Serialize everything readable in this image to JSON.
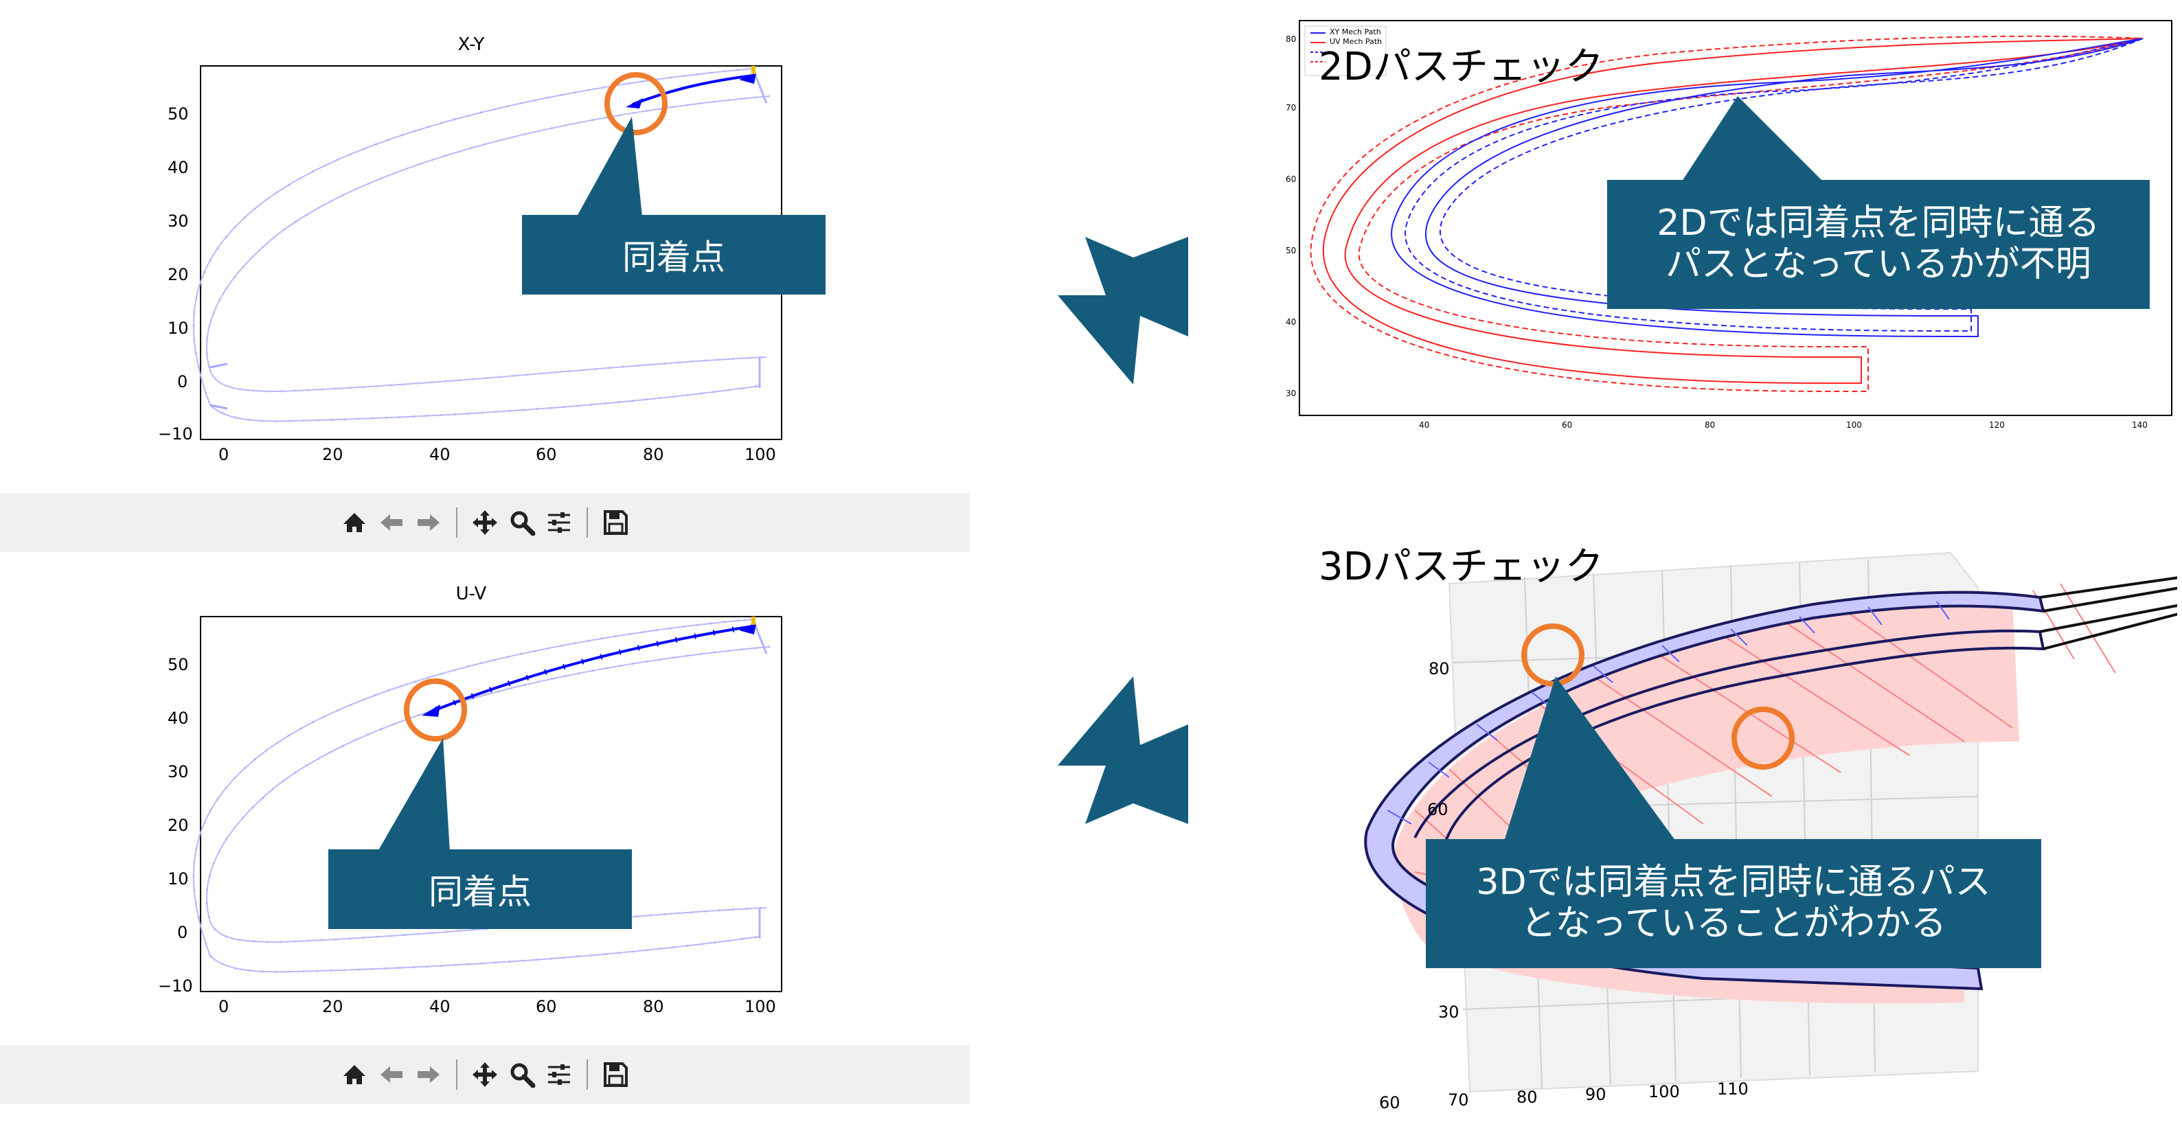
{
  "colors": {
    "callout": "#155c7c",
    "circle": "#ef7b2d",
    "path_blue": "#0000ff",
    "path_red": "#ff2020",
    "toolbar_bg": "#f0f0f0"
  },
  "xy_plot": {
    "title": "X-Y",
    "callout": "同着点",
    "x_ticks": [
      "0",
      "20",
      "40",
      "60",
      "80",
      "100"
    ],
    "y_ticks": [
      "50",
      "40",
      "30",
      "20",
      "10",
      "0",
      "−10"
    ]
  },
  "uv_plot": {
    "title": "U-V",
    "callout": "同着点",
    "x_ticks": [
      "0",
      "20",
      "40",
      "60",
      "80",
      "100"
    ],
    "y_ticks": [
      "50",
      "40",
      "30",
      "20",
      "10",
      "0",
      "−10"
    ]
  },
  "toolbar": {
    "icons": [
      "home-icon",
      "back-arrow-icon",
      "forward-arrow-icon",
      "pan-icon",
      "zoom-icon",
      "configure-subplots-icon",
      "save-icon"
    ]
  },
  "check2d": {
    "heading": "2Dパスチェック",
    "legend": [
      "XY Mech Path",
      "UV Mech Path"
    ],
    "callout_line1": "2Dでは同着点を同時に通る",
    "callout_line2": "パスとなっているかが不明",
    "x_ticks": [
      "40",
      "60",
      "80",
      "100",
      "120",
      "140"
    ],
    "y_ticks": [
      "80",
      "70",
      "60",
      "50",
      "40",
      "30"
    ]
  },
  "check3d": {
    "heading": "3Dパスチェック",
    "callout_line1": "3Dでは同着点を同時に通るパス",
    "callout_line2": "となっていることがわかる",
    "x_ticks": [
      "60",
      "70",
      "80",
      "90",
      "100",
      "110"
    ],
    "y_ticks": [
      "80",
      "60",
      "30"
    ]
  }
}
